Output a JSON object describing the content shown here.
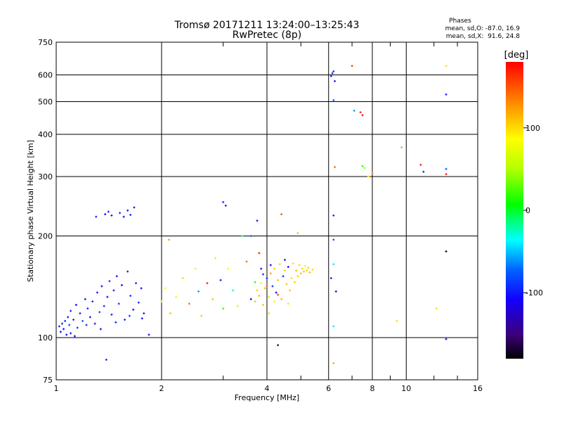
{
  "chart_data": {
    "type": "scatter",
    "title": "Tromsø 20171211 13:24:00–13:25:43",
    "subtitle": "RwPretec (8p)",
    "xlabel": "Frequency [MHz]",
    "ylabel": "Stationary phase Virtual Height [km]",
    "x_scale": "log",
    "y_scale": "log",
    "xlim": [
      1,
      16
    ],
    "ylim": [
      75,
      750
    ],
    "x_ticks": [
      1,
      2,
      4,
      6,
      8,
      10,
      16
    ],
    "x_tick_labels": [
      "1",
      "2",
      "4",
      "6",
      "8",
      "10",
      "16"
    ],
    "y_ticks": [
      75,
      100,
      200,
      300,
      400,
      500,
      600,
      750
    ],
    "y_tick_labels": [
      "75",
      "100",
      "200",
      "300",
      "400",
      "500",
      "600",
      "750"
    ],
    "grid": true,
    "phases_title": "Phases",
    "phases_o": "mean, sd,O: -87.0, 16.9",
    "phases_x": "mean, sd,X:  91.6, 24.8",
    "colorbar": {
      "label": "[deg]",
      "range": [
        -180,
        180
      ],
      "ticks": [
        100,
        0,
        -100
      ],
      "tick_labels": [
        "100",
        "0",
        "-100"
      ]
    },
    "points": [
      [
        1.02,
        108,
        -100
      ],
      [
        1.03,
        104,
        -110
      ],
      [
        1.04,
        110,
        -95
      ],
      [
        1.05,
        106,
        -105
      ],
      [
        1.06,
        112,
        -90
      ],
      [
        1.07,
        102,
        -115
      ],
      [
        1.08,
        115,
        -100
      ],
      [
        1.09,
        109,
        -85
      ],
      [
        1.1,
        120,
        -100
      ],
      [
        1.12,
        113,
        -95
      ],
      [
        1.14,
        125,
        -110
      ],
      [
        1.15,
        107,
        -92
      ],
      [
        1.17,
        118,
        -100
      ],
      [
        1.19,
        112,
        -80
      ],
      [
        1.21,
        130,
        -105
      ],
      [
        1.23,
        122,
        -98
      ],
      [
        1.25,
        115,
        -110
      ],
      [
        1.27,
        128,
        -96
      ],
      [
        1.29,
        110,
        -102
      ],
      [
        1.31,
        136,
        -100
      ],
      [
        1.33,
        119,
        -88
      ],
      [
        1.35,
        142,
        -108
      ],
      [
        1.37,
        124,
        -97
      ],
      [
        1.4,
        132,
        -112
      ],
      [
        1.42,
        147,
        -95
      ],
      [
        1.44,
        117,
        -104
      ],
      [
        1.46,
        138,
        -100
      ],
      [
        1.49,
        152,
        -106
      ],
      [
        1.51,
        126,
        -92
      ],
      [
        1.54,
        143,
        -110
      ],
      [
        1.57,
        113,
        -98
      ],
      [
        1.6,
        157,
        -102
      ],
      [
        1.63,
        133,
        -95
      ],
      [
        1.66,
        121,
        -108
      ],
      [
        1.69,
        145,
        -100
      ],
      [
        1.72,
        127,
        -96
      ],
      [
        1.75,
        140,
        -112
      ],
      [
        1.78,
        118,
        -99
      ],
      [
        1.1,
        103,
        -101
      ],
      [
        1.22,
        109,
        -93
      ],
      [
        1.34,
        106,
        -107
      ],
      [
        1.48,
        111,
        -100
      ],
      [
        1.62,
        116,
        -90
      ],
      [
        1.76,
        114,
        -105
      ],
      [
        1.84,
        102,
        -110
      ],
      [
        1.13,
        101,
        -104
      ],
      [
        1.38,
        232,
        -110
      ],
      [
        1.41,
        236,
        -100
      ],
      [
        1.44,
        230,
        -105
      ],
      [
        1.52,
        234,
        -95
      ],
      [
        1.56,
        228,
        -108
      ],
      [
        1.6,
        238,
        -102
      ],
      [
        1.63,
        231,
        -98
      ],
      [
        1.67,
        243,
        -110
      ],
      [
        1.3,
        228,
        -100
      ],
      [
        1.39,
        86,
        -100
      ],
      [
        2.0,
        128,
        60
      ],
      [
        2.05,
        140,
        80
      ],
      [
        2.1,
        195,
        120
      ],
      [
        2.12,
        118,
        110
      ],
      [
        2.2,
        132,
        90
      ],
      [
        2.3,
        150,
        100
      ],
      [
        2.4,
        126,
        140
      ],
      [
        2.5,
        160,
        75
      ],
      [
        2.55,
        137,
        -60
      ],
      [
        2.6,
        116,
        40
      ],
      [
        2.7,
        145,
        170
      ],
      [
        2.8,
        130,
        110
      ],
      [
        2.85,
        172,
        60
      ],
      [
        2.95,
        148,
        -100
      ],
      [
        3.0,
        122,
        20
      ],
      [
        3.05,
        246,
        -100
      ],
      [
        3.1,
        160,
        90
      ],
      [
        3.2,
        138,
        -30
      ],
      [
        3.3,
        124,
        60
      ],
      [
        3.4,
        200,
        -10
      ],
      [
        3.5,
        168,
        140
      ],
      [
        3.6,
        130,
        -120
      ],
      [
        3.7,
        146,
        10
      ],
      [
        3.8,
        178,
        170
      ],
      [
        3.9,
        154,
        -90
      ],
      [
        3.6,
        200,
        -80
      ],
      [
        3.75,
        222,
        -120
      ],
      [
        4.4,
        232,
        150
      ],
      [
        4.9,
        204,
        110
      ],
      [
        3.0,
        252,
        -100
      ],
      [
        3.7,
        128,
        110
      ],
      [
        3.75,
        138,
        105
      ],
      [
        3.8,
        133,
        115
      ],
      [
        3.85,
        145,
        95
      ],
      [
        3.9,
        125,
        108
      ],
      [
        3.95,
        140,
        112
      ],
      [
        4.0,
        150,
        -100
      ],
      [
        4.05,
        132,
        100
      ],
      [
        4.1,
        155,
        120
      ],
      [
        4.15,
        142,
        -90
      ],
      [
        4.2,
        160,
        105
      ],
      [
        4.25,
        136,
        -110
      ],
      [
        4.3,
        148,
        110
      ],
      [
        4.35,
        165,
        100
      ],
      [
        4.4,
        130,
        115
      ],
      [
        4.45,
        152,
        -95
      ],
      [
        4.5,
        158,
        103
      ],
      [
        4.55,
        144,
        108
      ],
      [
        4.6,
        162,
        -105
      ],
      [
        4.65,
        138,
        112
      ],
      [
        4.7,
        150,
        100
      ],
      [
        4.75,
        166,
        98
      ],
      [
        4.8,
        146,
        106
      ],
      [
        4.85,
        158,
        112
      ],
      [
        4.9,
        152,
        100
      ],
      [
        4.95,
        164,
        104
      ],
      [
        5.0,
        155,
        110
      ],
      [
        5.05,
        160,
        100
      ],
      [
        5.1,
        157,
        108
      ],
      [
        5.15,
        163,
        95
      ],
      [
        5.2,
        158,
        105
      ],
      [
        5.25,
        161,
        102
      ],
      [
        5.3,
        156,
        110
      ],
      [
        5.4,
        159,
        100
      ],
      [
        4.0,
        142,
        150
      ],
      [
        4.2,
        128,
        90
      ],
      [
        4.1,
        164,
        -115
      ],
      [
        4.3,
        134,
        160
      ],
      [
        4.5,
        170,
        -100
      ],
      [
        4.6,
        126,
        95
      ],
      [
        3.85,
        160,
        -110
      ],
      [
        4.05,
        118,
        100
      ],
      [
        4.3,
        95,
        -160
      ],
      [
        6.1,
        595,
        -100
      ],
      [
        6.15,
        607,
        -100
      ],
      [
        6.2,
        615,
        -90
      ],
      [
        6.25,
        575,
        -100
      ],
      [
        6.2,
        505,
        -80
      ],
      [
        6.25,
        320,
        140
      ],
      [
        6.2,
        230,
        -100
      ],
      [
        6.2,
        195,
        -80
      ],
      [
        6.2,
        165,
        -40
      ],
      [
        6.1,
        150,
        -100
      ],
      [
        6.3,
        137,
        -110
      ],
      [
        6.2,
        108,
        -40
      ],
      [
        6.2,
        84,
        120
      ],
      [
        7.0,
        638,
        160
      ],
      [
        7.1,
        470,
        -60
      ],
      [
        7.4,
        465,
        170
      ],
      [
        7.5,
        456,
        180
      ],
      [
        7.5,
        322,
        10
      ],
      [
        7.6,
        318,
        40
      ],
      [
        8.0,
        307,
        140
      ],
      [
        7.8,
        300,
        100
      ],
      [
        9.7,
        366,
        120
      ],
      [
        9.4,
        112,
        100
      ],
      [
        11.0,
        325,
        170
      ],
      [
        11.2,
        310,
        -100
      ],
      [
        13.0,
        638,
        100
      ],
      [
        13.0,
        525,
        -100
      ],
      [
        13.0,
        316,
        -80
      ],
      [
        13.0,
        305,
        175
      ],
      [
        13.0,
        180,
        -170
      ],
      [
        12.2,
        122,
        100
      ],
      [
        13.0,
        99,
        -110
      ]
    ]
  }
}
